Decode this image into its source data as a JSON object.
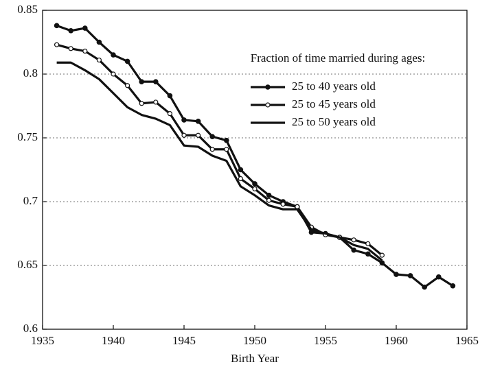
{
  "chart_data": {
    "type": "line",
    "xlabel": "Birth Year",
    "legend_title": "Fraction of time married during ages:",
    "legend": "upper right",
    "grid": true,
    "xlim": [
      1935,
      1965
    ],
    "xticks": [
      1935,
      1940,
      1945,
      1950,
      1955,
      1960,
      1965
    ],
    "ylim": [
      0.6,
      0.85
    ],
    "yticks": [
      0.6,
      0.65,
      0.7,
      0.75,
      0.8,
      0.85
    ],
    "series": [
      {
        "name": "25 to 40 years old",
        "color": "#111111",
        "marker": "filled",
        "x": [
          1936,
          1937,
          1938,
          1939,
          1940,
          1941,
          1942,
          1943,
          1944,
          1945,
          1946,
          1947,
          1948,
          1949,
          1950,
          1951,
          1952,
          1953,
          1954,
          1955,
          1956,
          1957,
          1958,
          1959,
          1960,
          1961,
          1962,
          1963,
          1964
        ],
        "values": [
          0.838,
          0.834,
          0.836,
          0.825,
          0.815,
          0.81,
          0.794,
          0.794,
          0.783,
          0.764,
          0.763,
          0.751,
          0.748,
          0.725,
          0.714,
          0.705,
          0.7,
          0.696,
          0.676,
          0.675,
          0.672,
          0.662,
          0.659,
          0.652,
          0.643,
          0.642,
          0.633,
          0.641,
          0.634
        ]
      },
      {
        "name": "25 to 45 years old",
        "color": "#111111",
        "marker": "open",
        "x": [
          1936,
          1937,
          1938,
          1939,
          1940,
          1941,
          1942,
          1943,
          1944,
          1945,
          1946,
          1947,
          1948,
          1949,
          1950,
          1951,
          1952,
          1953,
          1954,
          1955,
          1956,
          1957,
          1958,
          1959
        ],
        "values": [
          0.823,
          0.82,
          0.818,
          0.811,
          0.8,
          0.791,
          0.777,
          0.778,
          0.769,
          0.752,
          0.752,
          0.741,
          0.741,
          0.718,
          0.71,
          0.701,
          0.698,
          0.696,
          0.68,
          0.674,
          0.672,
          0.67,
          0.667,
          0.658
        ]
      },
      {
        "name": "25 to 50 years old",
        "color": "#111111",
        "marker": "none",
        "x": [
          1936,
          1937,
          1938,
          1939,
          1940,
          1941,
          1942,
          1943,
          1944,
          1945,
          1946,
          1947,
          1948,
          1949,
          1950,
          1951,
          1952,
          1953,
          1954,
          1955,
          1956,
          1957,
          1958,
          1959
        ],
        "values": [
          0.809,
          0.809,
          0.803,
          0.796,
          0.785,
          0.774,
          0.768,
          0.765,
          0.76,
          0.744,
          0.743,
          0.736,
          0.732,
          0.712,
          0.705,
          0.697,
          0.694,
          0.694,
          0.678,
          0.675,
          0.672,
          0.666,
          0.663,
          0.654
        ]
      }
    ]
  }
}
